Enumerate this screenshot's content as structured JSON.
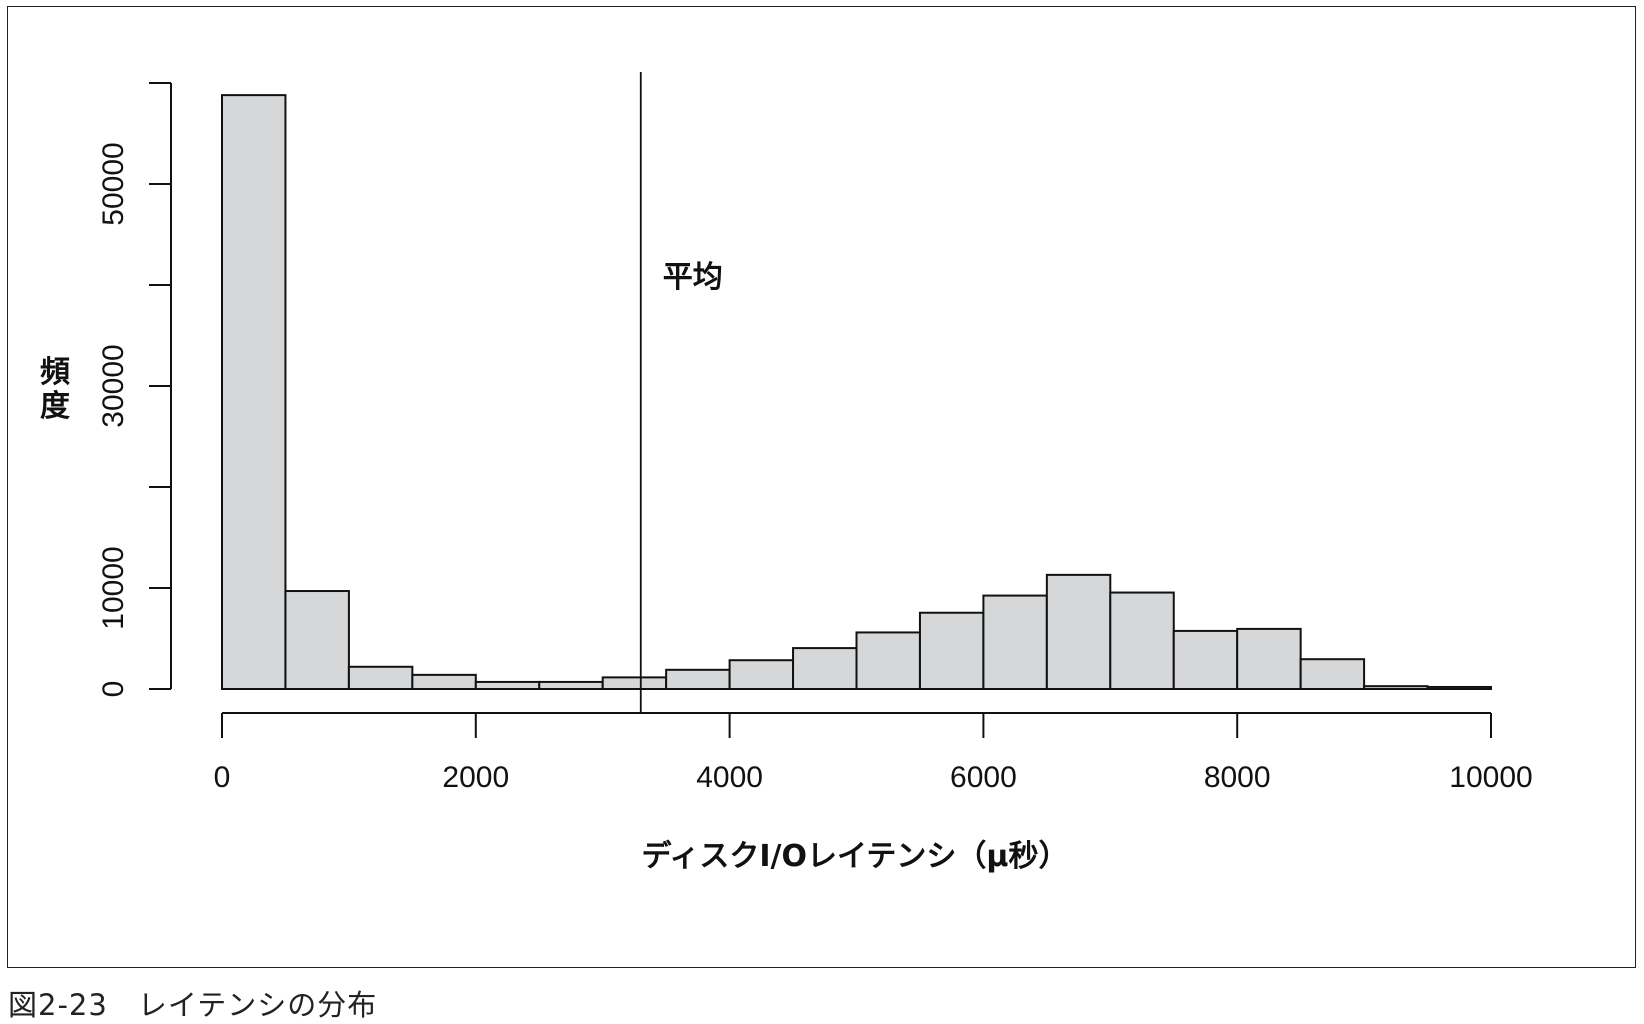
{
  "caption": "図2-23　レイテンシの分布",
  "chart_data": {
    "type": "bar",
    "title": "",
    "xlabel": "ディスクI/Oレイテンシ（μ秒）",
    "ylabel": "頻度",
    "bin_edges": [
      0,
      500,
      1000,
      1500,
      2000,
      2500,
      3000,
      3500,
      4000,
      4500,
      5000,
      5500,
      6000,
      6500,
      7000,
      7500,
      8000,
      8500,
      9000,
      9500,
      10000
    ],
    "values": [
      58800,
      9700,
      2200,
      1400,
      700,
      700,
      1150,
      1900,
      2850,
      4050,
      5600,
      7550,
      9250,
      11300,
      9550,
      5750,
      5950,
      2950,
      280,
      200
    ],
    "xlim": [
      0,
      10000
    ],
    "ylim": [
      0,
      60000
    ],
    "x_ticks": [
      0,
      2000,
      4000,
      6000,
      8000,
      10000
    ],
    "x_tick_labels": [
      "0",
      "2000",
      "4000",
      "6000",
      "8000",
      "10000"
    ],
    "y_ticks": [
      0,
      10000,
      20000,
      30000,
      40000,
      50000,
      60000
    ],
    "y_tick_labels": [
      "0",
      "10000",
      "",
      "30000",
      "",
      "50000",
      ""
    ],
    "mean_line": {
      "x": 3300,
      "label": "平均"
    },
    "bar_fill": "#d6d7d9",
    "bar_stroke": "#111111",
    "grid": false,
    "legend": "none"
  }
}
